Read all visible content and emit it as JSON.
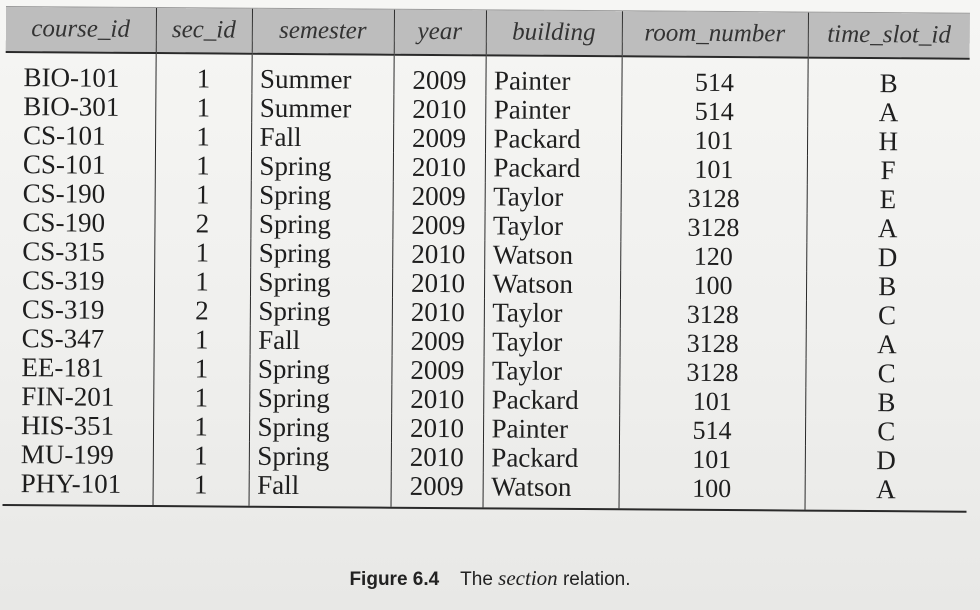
{
  "table": {
    "columns": [
      "course_id",
      "sec_id",
      "semester",
      "year",
      "building",
      "room_number",
      "time_slot_id"
    ],
    "rows": [
      [
        "BIO-101",
        "1",
        "Summer",
        "2009",
        "Painter",
        "514",
        "B"
      ],
      [
        "BIO-301",
        "1",
        "Summer",
        "2010",
        "Painter",
        "514",
        "A"
      ],
      [
        "CS-101",
        "1",
        "Fall",
        "2009",
        "Packard",
        "101",
        "H"
      ],
      [
        "CS-101",
        "1",
        "Spring",
        "2010",
        "Packard",
        "101",
        "F"
      ],
      [
        "CS-190",
        "1",
        "Spring",
        "2009",
        "Taylor",
        "3128",
        "E"
      ],
      [
        "CS-190",
        "2",
        "Spring",
        "2009",
        "Taylor",
        "3128",
        "A"
      ],
      [
        "CS-315",
        "1",
        "Spring",
        "2010",
        "Watson",
        "120",
        "D"
      ],
      [
        "CS-319",
        "1",
        "Spring",
        "2010",
        "Watson",
        "100",
        "B"
      ],
      [
        "CS-319",
        "2",
        "Spring",
        "2010",
        "Taylor",
        "3128",
        "C"
      ],
      [
        "CS-347",
        "1",
        "Fall",
        "2009",
        "Taylor",
        "3128",
        "A"
      ],
      [
        "EE-181",
        "1",
        "Spring",
        "2009",
        "Taylor",
        "3128",
        "C"
      ],
      [
        "FIN-201",
        "1",
        "Spring",
        "2010",
        "Packard",
        "101",
        "B"
      ],
      [
        "HIS-351",
        "1",
        "Spring",
        "2010",
        "Painter",
        "514",
        "C"
      ],
      [
        "MU-199",
        "1",
        "Spring",
        "2010",
        "Packard",
        "101",
        "D"
      ],
      [
        "PHY-101",
        "1",
        "Fall",
        "2009",
        "Watson",
        "100",
        "A"
      ]
    ]
  },
  "caption": {
    "figure_label": "Figure 6.4",
    "text_before": "The",
    "relation": "section",
    "text_after": "relation."
  }
}
